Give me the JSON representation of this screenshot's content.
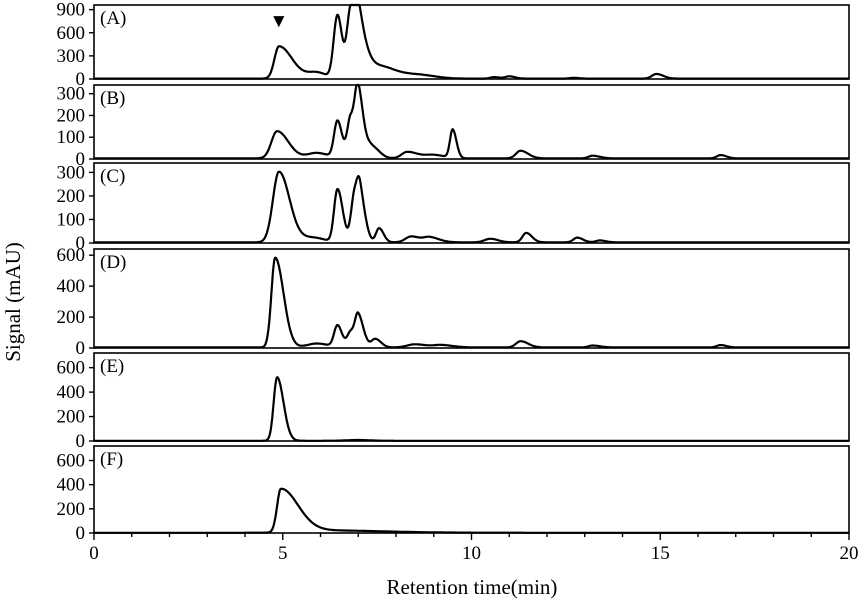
{
  "chart_data": {
    "type": "line",
    "xlabel": "Retention time(min)",
    "ylabel": "Signal (mAU)",
    "xlim": [
      0,
      20
    ],
    "x_ticks": [
      0,
      5,
      10,
      15,
      20
    ],
    "x_tick_labels": [
      "0",
      "5",
      "10",
      "15",
      "20"
    ],
    "x_minor_step": 1,
    "marker_symbol": "▼",
    "marker_x": 5.0,
    "grid": false,
    "panels": [
      {
        "label": "(A)",
        "ylim": [
          0,
          960
        ],
        "y_ticks": [
          0,
          300,
          600,
          900
        ],
        "y_tick_labels": [
          "0",
          "300",
          "600",
          "900"
        ],
        "baseline": 5,
        "peaks": [
          [
            4.9,
            420,
            0.12,
            0.35
          ],
          [
            5.9,
            80,
            0.25,
            0.25
          ],
          [
            6.45,
            820,
            0.1,
            0.12
          ],
          [
            6.8,
            880,
            0.1,
            0.18
          ],
          [
            7.0,
            560,
            0.1,
            0.2
          ],
          [
            7.4,
            140,
            0.2,
            0.3
          ],
          [
            7.9,
            90,
            0.3,
            0.4
          ],
          [
            8.7,
            40,
            0.3,
            0.4
          ],
          [
            10.6,
            20,
            0.1,
            0.15
          ],
          [
            11.0,
            30,
            0.1,
            0.15
          ],
          [
            12.7,
            10,
            0.1,
            0.15
          ],
          [
            14.9,
            60,
            0.12,
            0.18
          ]
        ]
      },
      {
        "label": "(B)",
        "ylim": [
          0,
          340
        ],
        "y_ticks": [
          0,
          100,
          200,
          300
        ],
        "y_tick_labels": [
          "0",
          "100",
          "200",
          "300"
        ],
        "baseline": 3,
        "peaks": [
          [
            4.85,
            125,
            0.15,
            0.3
          ],
          [
            5.9,
            25,
            0.25,
            0.3
          ],
          [
            6.45,
            170,
            0.09,
            0.12
          ],
          [
            6.8,
            190,
            0.09,
            0.15
          ],
          [
            7.0,
            270,
            0.08,
            0.14
          ],
          [
            7.35,
            55,
            0.12,
            0.2
          ],
          [
            8.3,
            30,
            0.15,
            0.3
          ],
          [
            9.0,
            15,
            0.2,
            0.3
          ],
          [
            9.5,
            130,
            0.07,
            0.1
          ],
          [
            11.3,
            35,
            0.12,
            0.2
          ],
          [
            13.2,
            12,
            0.1,
            0.2
          ],
          [
            16.6,
            15,
            0.1,
            0.15
          ]
        ]
      },
      {
        "label": "(C)",
        "ylim": [
          0,
          340
        ],
        "y_ticks": [
          0,
          100,
          200,
          300
        ],
        "y_tick_labels": [
          "0",
          "100",
          "200",
          "300"
        ],
        "baseline": 3,
        "peaks": [
          [
            4.9,
            300,
            0.16,
            0.28
          ],
          [
            5.8,
            20,
            0.3,
            0.3
          ],
          [
            6.45,
            225,
            0.09,
            0.14
          ],
          [
            6.9,
            200,
            0.09,
            0.12
          ],
          [
            7.05,
            170,
            0.08,
            0.14
          ],
          [
            7.55,
            60,
            0.08,
            0.12
          ],
          [
            8.4,
            25,
            0.15,
            0.25
          ],
          [
            8.9,
            20,
            0.15,
            0.25
          ],
          [
            10.5,
            15,
            0.15,
            0.2
          ],
          [
            11.45,
            40,
            0.1,
            0.15
          ],
          [
            12.8,
            20,
            0.1,
            0.15
          ],
          [
            13.4,
            8,
            0.1,
            0.15
          ]
        ]
      },
      {
        "label": "(D)",
        "ylim": [
          0,
          640
        ],
        "y_ticks": [
          0,
          200,
          400,
          600
        ],
        "y_tick_labels": [
          "0",
          "200",
          "400",
          "600"
        ],
        "baseline": 4,
        "peaks": [
          [
            4.8,
            580,
            0.1,
            0.22
          ],
          [
            5.9,
            25,
            0.25,
            0.3
          ],
          [
            6.45,
            140,
            0.09,
            0.12
          ],
          [
            6.8,
            100,
            0.09,
            0.12
          ],
          [
            7.0,
            200,
            0.08,
            0.14
          ],
          [
            7.45,
            55,
            0.1,
            0.15
          ],
          [
            8.5,
            20,
            0.2,
            0.3
          ],
          [
            9.2,
            15,
            0.2,
            0.3
          ],
          [
            11.3,
            40,
            0.12,
            0.2
          ],
          [
            13.2,
            12,
            0.1,
            0.2
          ],
          [
            16.6,
            15,
            0.1,
            0.15
          ]
        ]
      },
      {
        "label": "(E)",
        "ylim": [
          0,
          720
        ],
        "y_ticks": [
          0,
          200,
          400,
          600
        ],
        "y_tick_labels": [
          "0",
          "200",
          "400",
          "600"
        ],
        "baseline": 2,
        "peaks": [
          [
            4.85,
            520,
            0.09,
            0.17
          ],
          [
            7.0,
            6,
            0.3,
            0.3
          ]
        ]
      },
      {
        "label": "(F)",
        "ylim": [
          0,
          720
        ],
        "y_ticks": [
          0,
          200,
          400,
          600
        ],
        "y_tick_labels": [
          "0",
          "200",
          "400",
          "600"
        ],
        "baseline": 2,
        "peaks": [
          [
            4.95,
            360,
            0.1,
            0.45
          ],
          [
            6.0,
            20,
            0.6,
            1.6
          ]
        ]
      }
    ]
  }
}
